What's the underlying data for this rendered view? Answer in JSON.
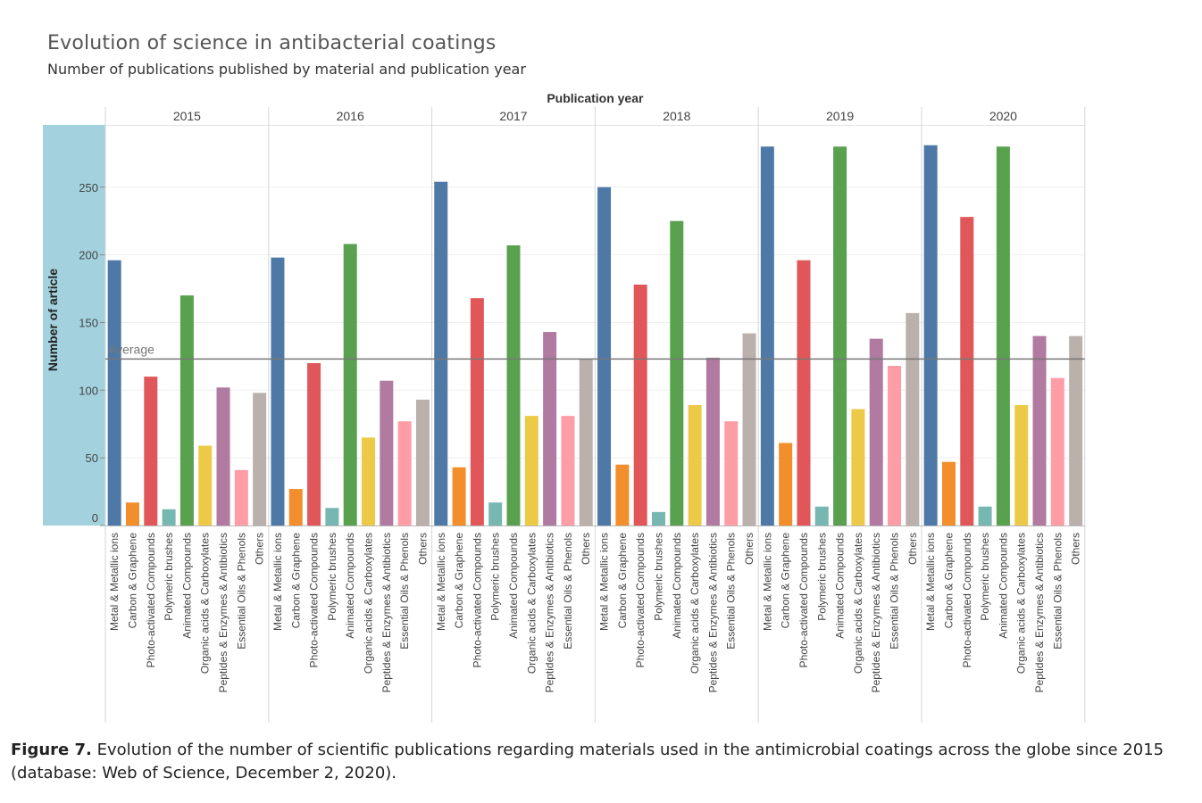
{
  "title": "Evolution of science in antibacterial coatings",
  "subtitle": "Number of publications published by material and publication year",
  "caption": {
    "label": "Figure 7.",
    "text": "Evolution of the number of scientific publications regarding materials used in the antimicrobial coatings across the globe since 2015 (database: Web of Science, December 2, 2020)."
  },
  "chart_data": {
    "type": "bar",
    "xlabel": "Publication year",
    "ylabel": "Number of article",
    "ylim": [
      0,
      296
    ],
    "y_ticks": [
      0,
      50,
      100,
      150,
      200,
      250
    ],
    "grid": true,
    "reference_line": {
      "label": "Average",
      "value": 123
    },
    "categories": [
      "Metal & Metallic ions",
      "Carbon & Graphene",
      "Photo-activated Compounds",
      "Polymeric brushes",
      "Animated Compounds",
      "Organic acids & Carboxylates",
      "Peptides & Enzymes & Antibiotics",
      "Essential Oils & Phenols",
      "Others"
    ],
    "colors": [
      "#4e79a7",
      "#f28e2b",
      "#e15759",
      "#76b7b2",
      "#59a14f",
      "#edc948",
      "#b07aa1",
      "#ff9da7",
      "#bab0ac"
    ],
    "groups": [
      {
        "year": "2015",
        "values": [
          196,
          17,
          110,
          12,
          170,
          59,
          102,
          41,
          98
        ]
      },
      {
        "year": "2016",
        "values": [
          198,
          27,
          120,
          13,
          208,
          65,
          107,
          77,
          93
        ]
      },
      {
        "year": "2017",
        "values": [
          254,
          43,
          168,
          17,
          207,
          81,
          143,
          81,
          123
        ]
      },
      {
        "year": "2018",
        "values": [
          250,
          45,
          178,
          10,
          225,
          89,
          124,
          77,
          142
        ]
      },
      {
        "year": "2019",
        "values": [
          280,
          61,
          196,
          14,
          280,
          86,
          138,
          118,
          157
        ]
      },
      {
        "year": "2020",
        "values": [
          281,
          47,
          228,
          14,
          280,
          89,
          140,
          109,
          140
        ]
      }
    ]
  }
}
